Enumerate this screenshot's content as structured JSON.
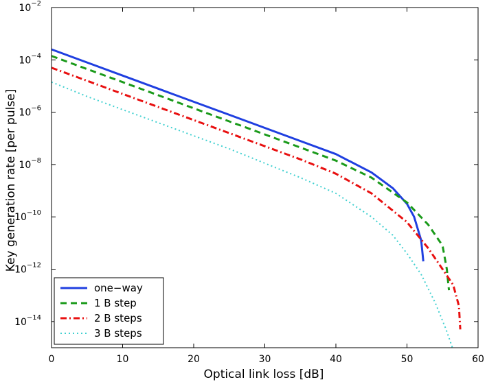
{
  "chart_data": {
    "type": "line",
    "title": "",
    "xlabel": "Optical link loss [dB]",
    "ylabel": "Key generation rate [per pulse]",
    "xlim": [
      0,
      60
    ],
    "ylim_exp": [
      -15,
      -2
    ],
    "yscale": "log",
    "xticks": [
      0,
      10,
      20,
      30,
      40,
      50,
      60
    ],
    "yticks_exp": [
      -14,
      -12,
      -10,
      -8,
      -6,
      -4,
      -2
    ],
    "ytick_base": "10",
    "grid": false,
    "legend_position": "bottom-left",
    "series": [
      {
        "name": "one−way",
        "color": "#1f3fe0",
        "dash": "solid",
        "points": [
          [
            0,
            -3.6
          ],
          [
            5,
            -4.1
          ],
          [
            10,
            -4.6
          ],
          [
            15,
            -5.1
          ],
          [
            20,
            -5.6
          ],
          [
            25,
            -6.1
          ],
          [
            30,
            -6.6
          ],
          [
            35,
            -7.1
          ],
          [
            40,
            -7.6
          ],
          [
            45,
            -8.3
          ],
          [
            48,
            -8.9
          ],
          [
            50,
            -9.5
          ],
          [
            51,
            -10.0
          ],
          [
            52,
            -10.9
          ],
          [
            52.3,
            -11.7
          ]
        ]
      },
      {
        "name": "1 B step",
        "color": "#1a9a1a",
        "dash": "dashed",
        "points": [
          [
            0,
            -3.85
          ],
          [
            5,
            -4.35
          ],
          [
            10,
            -4.85
          ],
          [
            15,
            -5.35
          ],
          [
            20,
            -5.85
          ],
          [
            25,
            -6.35
          ],
          [
            30,
            -6.85
          ],
          [
            35,
            -7.35
          ],
          [
            40,
            -7.85
          ],
          [
            45,
            -8.5
          ],
          [
            50,
            -9.45
          ],
          [
            53,
            -10.3
          ],
          [
            55,
            -11.1
          ],
          [
            55.6,
            -12.0
          ],
          [
            55.9,
            -12.8
          ]
        ]
      },
      {
        "name": "2 B steps",
        "color": "#e81010",
        "dash": "dashdot",
        "points": [
          [
            0,
            -4.3
          ],
          [
            5,
            -4.8
          ],
          [
            10,
            -5.3
          ],
          [
            15,
            -5.8
          ],
          [
            20,
            -6.3
          ],
          [
            25,
            -6.8
          ],
          [
            30,
            -7.3
          ],
          [
            35,
            -7.8
          ],
          [
            40,
            -8.35
          ],
          [
            45,
            -9.1
          ],
          [
            50,
            -10.2
          ],
          [
            53,
            -11.2
          ],
          [
            55,
            -12.0
          ],
          [
            56.5,
            -12.6
          ],
          [
            57.3,
            -13.4
          ],
          [
            57.5,
            -14.3
          ]
        ]
      },
      {
        "name": "3 B steps",
        "color": "#40d0d0",
        "dash": "dotted",
        "points": [
          [
            0,
            -4.85
          ],
          [
            5,
            -5.4
          ],
          [
            10,
            -5.9
          ],
          [
            15,
            -6.4
          ],
          [
            20,
            -6.9
          ],
          [
            25,
            -7.4
          ],
          [
            30,
            -7.95
          ],
          [
            35,
            -8.5
          ],
          [
            40,
            -9.1
          ],
          [
            45,
            -10.0
          ],
          [
            48,
            -10.7
          ],
          [
            50,
            -11.4
          ],
          [
            52,
            -12.2
          ],
          [
            54,
            -13.3
          ],
          [
            55.5,
            -14.3
          ],
          [
            56.4,
            -15.0
          ]
        ]
      }
    ]
  }
}
